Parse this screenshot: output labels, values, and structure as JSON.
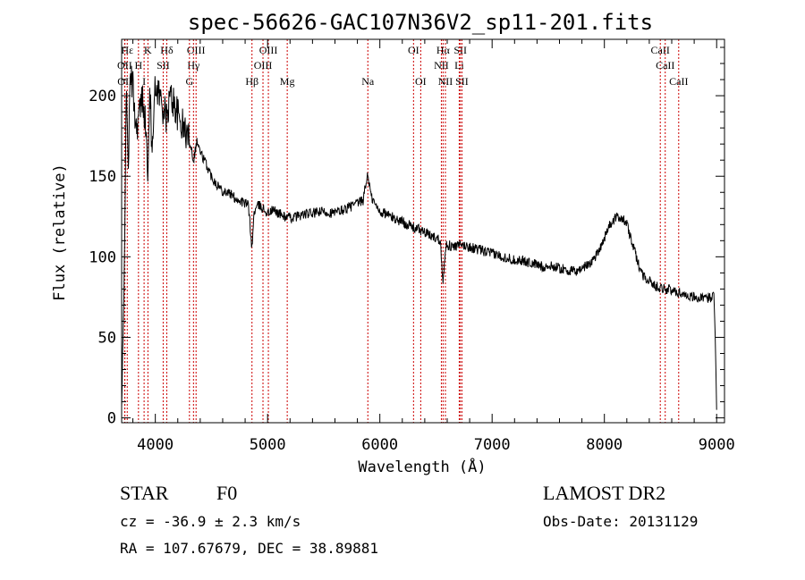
{
  "chart_data": {
    "type": "line",
    "title": "spec-56626-GAC107N36V2_sp11-201.fits",
    "xlabel": "Wavelength (Å)",
    "ylabel": "Flux (relative)",
    "xlim": [
      3700,
      9070
    ],
    "ylim": [
      -3,
      235
    ],
    "x_ticks": [
      4000,
      5000,
      6000,
      7000,
      8000,
      9000
    ],
    "x_tick_labels": [
      "4000",
      "5000",
      "6000",
      "7000",
      "8000",
      "9000"
    ],
    "y_ticks": [
      0,
      50,
      100,
      150,
      200
    ],
    "y_tick_labels": [
      "0",
      "50",
      "100",
      "150",
      "200"
    ],
    "grid": false,
    "series": [
      {
        "x": [
          3700,
          3720,
          3740,
          3760,
          3780,
          3800,
          3830,
          3860,
          3890,
          3920,
          3933,
          3950,
          3968,
          3990,
          4020,
          4060,
          4101,
          4130,
          4170,
          4200,
          4250,
          4290,
          4320,
          4340,
          4370,
          4400,
          4450,
          4500,
          4550,
          4600,
          4650,
          4700,
          4750,
          4800,
          4830,
          4861,
          4880,
          4920,
          4960,
          5000,
          5050,
          5100,
          5150,
          5200,
          5300,
          5400,
          5500,
          5600,
          5700,
          5800,
          5850,
          5893,
          5920,
          5960,
          6000,
          6050,
          6100,
          6150,
          6200,
          6250,
          6300,
          6350,
          6400,
          6450,
          6500,
          6540,
          6563,
          6590,
          6650,
          6700,
          6750,
          6800,
          6850,
          6900,
          6950,
          7000,
          7050,
          7100,
          7150,
          7200,
          7250,
          7300,
          7350,
          7400,
          7450,
          7500,
          7550,
          7600,
          7650,
          7700,
          7750,
          7800,
          7850,
          7900,
          7950,
          8000,
          8050,
          8100,
          8150,
          8200,
          8250,
          8300,
          8350,
          8400,
          8450,
          8500,
          8550,
          8600,
          8650,
          8700,
          8750,
          8800,
          8850,
          8900,
          8950,
          8975,
          8990,
          9000
        ],
        "y": [
          5,
          70,
          200,
          160,
          215,
          205,
          180,
          190,
          200,
          175,
          140,
          210,
          165,
          200,
          205,
          195,
          185,
          200,
          195,
          188,
          180,
          175,
          168,
          160,
          172,
          165,
          158,
          150,
          145,
          141,
          140,
          137,
          135,
          133,
          132,
          105,
          128,
          132,
          130,
          127,
          129,
          127,
          125,
          124,
          126,
          127,
          128,
          127,
          130,
          133,
          135,
          152,
          138,
          132,
          128,
          127,
          125,
          123,
          122,
          120,
          118,
          117,
          115,
          113,
          112,
          110,
          84,
          108,
          106,
          107,
          107,
          106,
          105,
          104,
          103,
          102,
          101,
          100,
          99,
          98,
          98,
          97,
          96,
          95,
          94,
          94,
          94,
          93,
          92,
          91,
          91,
          93,
          95,
          98,
          104,
          112,
          120,
          124,
          125,
          120,
          108,
          96,
          88,
          85,
          82,
          81,
          80,
          79,
          78,
          77,
          76,
          75,
          74,
          74,
          75,
          80,
          40,
          5
        ]
      }
    ],
    "line_markers": [
      {
        "name": "Hε",
        "x": 3750,
        "row": 0
      },
      {
        "name": "K",
        "x": 3934,
        "row": 0
      },
      {
        "name": "Hδ",
        "x": 4102,
        "row": 0
      },
      {
        "name": "OIII",
        "x": 4363,
        "row": 0
      },
      {
        "name": "OIII",
        "x": 5007,
        "row": 0
      },
      {
        "name": "OI",
        "x": 6300,
        "row": 0
      },
      {
        "name": "Hα",
        "x": 6563,
        "row": 0
      },
      {
        "name": "SII",
        "x": 6717,
        "row": 0
      },
      {
        "name": "CaII",
        "x": 8498,
        "row": 0
      },
      {
        "name": "OII",
        "x": 3727,
        "row": 1
      },
      {
        "name": "H",
        "x": 3850,
        "row": 1
      },
      {
        "name": "SII",
        "x": 4070,
        "row": 1
      },
      {
        "name": "Hγ",
        "x": 4340,
        "row": 1
      },
      {
        "name": "OIII",
        "x": 4959,
        "row": 1
      },
      {
        "name": "NII",
        "x": 6548,
        "row": 1
      },
      {
        "name": "Li",
        "x": 6707,
        "row": 1
      },
      {
        "name": "CaII",
        "x": 8542,
        "row": 1
      },
      {
        "name": "OII",
        "x": 3729,
        "row": 2
      },
      {
        "name": "I",
        "x": 3900,
        "row": 2
      },
      {
        "name": "G",
        "x": 4304,
        "row": 2
      },
      {
        "name": "Hβ",
        "x": 4861,
        "row": 2
      },
      {
        "name": "Mg",
        "x": 5175,
        "row": 2
      },
      {
        "name": "Na",
        "x": 5893,
        "row": 2
      },
      {
        "name": "OI",
        "x": 6364,
        "row": 2
      },
      {
        "name": "NII",
        "x": 6584,
        "row": 2
      },
      {
        "name": "SII",
        "x": 6731,
        "row": 2
      },
      {
        "name": "CaII",
        "x": 8662,
        "row": 2
      }
    ]
  },
  "info": {
    "object_class": "STAR",
    "subclass": "F0",
    "cz": "cz = -36.9 ± 2.3 km/s",
    "coords": "RA = 107.67679, DEC =  38.89881",
    "survey": "LAMOST DR2",
    "obs_date": "Obs-Date: 20131129"
  },
  "colors": {
    "spectrum": "#000000",
    "marker_line": "#cc0000",
    "axis": "#000000"
  }
}
